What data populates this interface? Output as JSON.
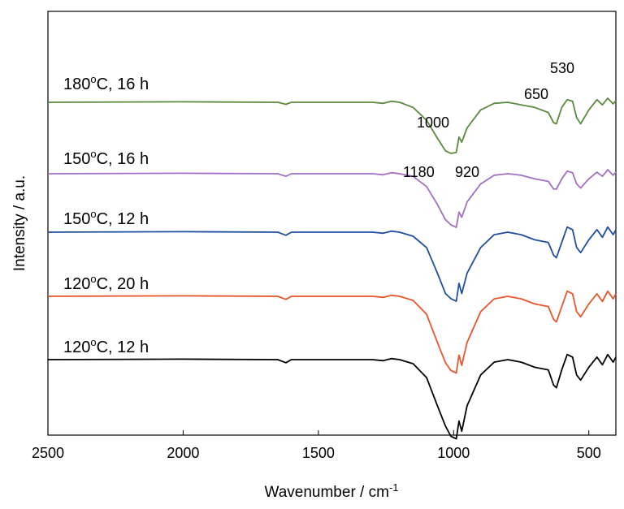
{
  "chart_data": {
    "type": "line",
    "title": "",
    "xlabel": "Wavenumber / cm",
    "xlabel_superscript": "-1",
    "ylabel": "Intensity / a.u.",
    "xlim": [
      2500,
      400
    ],
    "x_reversed": true,
    "x_ticks": [
      2500,
      2000,
      1500,
      1000,
      500
    ],
    "x_tick_labels": [
      "2500",
      "2000",
      "1500",
      "1000",
      "500"
    ],
    "y_ticks_shown": false,
    "grid": false,
    "legend": "none (labels printed next to each trace)",
    "series": [
      {
        "name": "120°C, 12 h",
        "label_parts": [
          "120",
          "o",
          "C, 12 h"
        ],
        "color": "#000000",
        "offset": 0,
        "points": [
          [
            2500,
            0
          ],
          [
            2000,
            0.01
          ],
          [
            1650,
            0
          ],
          [
            1620,
            -0.06
          ],
          [
            1600,
            0
          ],
          [
            1300,
            0
          ],
          [
            1260,
            -0.02
          ],
          [
            1230,
            0.02
          ],
          [
            1200,
            0
          ],
          [
            1150,
            -0.08
          ],
          [
            1100,
            -0.35
          ],
          [
            1060,
            -0.9
          ],
          [
            1030,
            -1.3
          ],
          [
            1010,
            -1.5
          ],
          [
            990,
            -1.55
          ],
          [
            980,
            -1.2
          ],
          [
            970,
            -1.4
          ],
          [
            950,
            -0.9
          ],
          [
            900,
            -0.3
          ],
          [
            850,
            -0.05
          ],
          [
            800,
            0
          ],
          [
            750,
            -0.05
          ],
          [
            700,
            -0.15
          ],
          [
            650,
            -0.2
          ],
          [
            630,
            -0.5
          ],
          [
            620,
            -0.55
          ],
          [
            600,
            -0.2
          ],
          [
            580,
            0.1
          ],
          [
            560,
            0.05
          ],
          [
            545,
            -0.3
          ],
          [
            530,
            -0.4
          ],
          [
            500,
            -0.15
          ],
          [
            470,
            0.05
          ],
          [
            450,
            -0.1
          ],
          [
            430,
            0.1
          ],
          [
            410,
            -0.05
          ],
          [
            400,
            0.05
          ]
        ]
      },
      {
        "name": "120°C, 20 h",
        "label_parts": [
          "120",
          "o",
          "C, 20 h"
        ],
        "color": "#e8552b",
        "offset": 1,
        "points": [
          [
            2500,
            0
          ],
          [
            2000,
            0.01
          ],
          [
            1650,
            0
          ],
          [
            1620,
            -0.06
          ],
          [
            1600,
            0
          ],
          [
            1300,
            0
          ],
          [
            1260,
            -0.02
          ],
          [
            1230,
            0.02
          ],
          [
            1200,
            0
          ],
          [
            1150,
            -0.08
          ],
          [
            1100,
            -0.35
          ],
          [
            1060,
            -0.9
          ],
          [
            1030,
            -1.3
          ],
          [
            1010,
            -1.45
          ],
          [
            990,
            -1.5
          ],
          [
            980,
            -1.15
          ],
          [
            970,
            -1.35
          ],
          [
            950,
            -0.9
          ],
          [
            900,
            -0.3
          ],
          [
            850,
            -0.05
          ],
          [
            800,
            0
          ],
          [
            750,
            -0.05
          ],
          [
            700,
            -0.15
          ],
          [
            650,
            -0.2
          ],
          [
            630,
            -0.45
          ],
          [
            620,
            -0.5
          ],
          [
            600,
            -0.2
          ],
          [
            580,
            0.1
          ],
          [
            560,
            0.05
          ],
          [
            545,
            -0.3
          ],
          [
            530,
            -0.4
          ],
          [
            500,
            -0.15
          ],
          [
            470,
            0.05
          ],
          [
            450,
            -0.1
          ],
          [
            430,
            0.1
          ],
          [
            410,
            -0.05
          ],
          [
            400,
            0.05
          ]
        ]
      },
      {
        "name": "150°C, 12 h",
        "label_parts": [
          "150",
          "o",
          "C, 12 h"
        ],
        "color": "#1f4fa0",
        "offset": 2,
        "points": [
          [
            2500,
            0
          ],
          [
            2000,
            0.01
          ],
          [
            1650,
            0
          ],
          [
            1620,
            -0.06
          ],
          [
            1600,
            0
          ],
          [
            1300,
            0
          ],
          [
            1260,
            -0.02
          ],
          [
            1230,
            0.02
          ],
          [
            1200,
            0
          ],
          [
            1150,
            -0.08
          ],
          [
            1100,
            -0.3
          ],
          [
            1060,
            -0.8
          ],
          [
            1030,
            -1.2
          ],
          [
            1010,
            -1.3
          ],
          [
            990,
            -1.35
          ],
          [
            980,
            -1.0
          ],
          [
            970,
            -1.2
          ],
          [
            950,
            -0.8
          ],
          [
            900,
            -0.3
          ],
          [
            850,
            -0.05
          ],
          [
            800,
            0
          ],
          [
            750,
            -0.05
          ],
          [
            700,
            -0.15
          ],
          [
            650,
            -0.2
          ],
          [
            630,
            -0.45
          ],
          [
            620,
            -0.5
          ],
          [
            600,
            -0.2
          ],
          [
            580,
            0.1
          ],
          [
            560,
            0.05
          ],
          [
            545,
            -0.3
          ],
          [
            530,
            -0.4
          ],
          [
            500,
            -0.15
          ],
          [
            470,
            0.05
          ],
          [
            450,
            -0.1
          ],
          [
            430,
            0.1
          ],
          [
            410,
            -0.05
          ],
          [
            400,
            0.05
          ]
        ]
      },
      {
        "name": "150°C, 16 h",
        "label_parts": [
          "150",
          "o",
          "C, 16 h"
        ],
        "color": "#a36fc4",
        "offset": 3,
        "points": [
          [
            2500,
            0
          ],
          [
            2000,
            0.01
          ],
          [
            1650,
            0
          ],
          [
            1620,
            -0.05
          ],
          [
            1600,
            0
          ],
          [
            1300,
            0
          ],
          [
            1260,
            -0.02
          ],
          [
            1230,
            0.02
          ],
          [
            1200,
            0
          ],
          [
            1150,
            -0.05
          ],
          [
            1100,
            -0.25
          ],
          [
            1060,
            -0.6
          ],
          [
            1030,
            -0.9
          ],
          [
            1010,
            -1.0
          ],
          [
            990,
            -1.05
          ],
          [
            980,
            -0.75
          ],
          [
            970,
            -0.85
          ],
          [
            950,
            -0.55
          ],
          [
            900,
            -0.2
          ],
          [
            850,
            -0.03
          ],
          [
            800,
            0
          ],
          [
            750,
            -0.03
          ],
          [
            700,
            -0.1
          ],
          [
            650,
            -0.15
          ],
          [
            630,
            -0.3
          ],
          [
            620,
            -0.3
          ],
          [
            600,
            -0.1
          ],
          [
            580,
            0.05
          ],
          [
            560,
            0.02
          ],
          [
            545,
            -0.2
          ],
          [
            530,
            -0.28
          ],
          [
            500,
            -0.1
          ],
          [
            470,
            0.03
          ],
          [
            450,
            -0.05
          ],
          [
            430,
            0.08
          ],
          [
            410,
            -0.03
          ],
          [
            400,
            0.03
          ]
        ]
      },
      {
        "name": "180°C, 16 h",
        "label_parts": [
          "180",
          "o",
          "C, 16 h"
        ],
        "color": "#5a8a3c",
        "offset": 4,
        "points": [
          [
            2500,
            0
          ],
          [
            2000,
            0.01
          ],
          [
            1650,
            0
          ],
          [
            1620,
            -0.04
          ],
          [
            1600,
            0
          ],
          [
            1300,
            0
          ],
          [
            1260,
            -0.02
          ],
          [
            1230,
            0.02
          ],
          [
            1200,
            0
          ],
          [
            1150,
            -0.1
          ],
          [
            1100,
            -0.35
          ],
          [
            1060,
            -0.7
          ],
          [
            1030,
            -0.95
          ],
          [
            1010,
            -1.0
          ],
          [
            990,
            -0.98
          ],
          [
            980,
            -0.68
          ],
          [
            970,
            -0.78
          ],
          [
            950,
            -0.5
          ],
          [
            900,
            -0.15
          ],
          [
            850,
            -0.02
          ],
          [
            800,
            0
          ],
          [
            750,
            -0.05
          ],
          [
            700,
            -0.1
          ],
          [
            650,
            -0.2
          ],
          [
            630,
            -0.4
          ],
          [
            620,
            -0.42
          ],
          [
            600,
            -0.1
          ],
          [
            580,
            0.05
          ],
          [
            560,
            0.02
          ],
          [
            545,
            -0.3
          ],
          [
            530,
            -0.42
          ],
          [
            500,
            -0.15
          ],
          [
            470,
            0.05
          ],
          [
            450,
            -0.05
          ],
          [
            430,
            0.08
          ],
          [
            410,
            -0.03
          ],
          [
            400,
            0.03
          ]
        ]
      }
    ],
    "annotations": [
      "530",
      "650",
      "1000",
      "1180",
      "920"
    ]
  }
}
